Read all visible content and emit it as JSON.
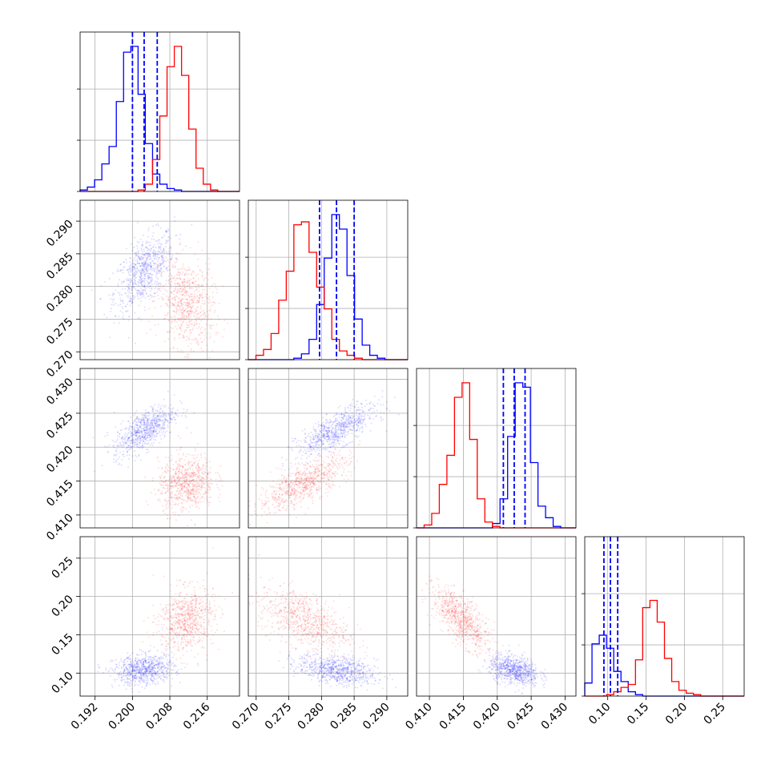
{
  "colors": {
    "blue": "#0000ff",
    "red": "#ff0000",
    "grid": "#b0b0b0"
  },
  "chart_data": {
    "type": "corner",
    "grid": true,
    "params": [
      {
        "ticks": [
          0.192,
          0.2,
          0.208,
          0.216
        ],
        "tick_labels": [
          "0.192",
          "0.200",
          "0.208",
          "0.216"
        ],
        "lim": [
          0.1888,
          0.2229
        ]
      },
      {
        "ticks": [
          0.27,
          0.275,
          0.28,
          0.285,
          0.29
        ],
        "tick_labels": [
          "0.270",
          "0.275",
          "0.280",
          "0.285",
          "0.290"
        ],
        "lim": [
          0.2688,
          0.2932
        ]
      },
      {
        "ticks": [
          0.41,
          0.415,
          0.42,
          0.425,
          0.43
        ],
        "tick_labels": [
          "0.410",
          "0.415",
          "0.420",
          "0.425",
          "0.430"
        ],
        "lim": [
          0.4081,
          0.4316
        ]
      },
      {
        "ticks": [
          0.1,
          0.15,
          0.2,
          0.25
        ],
        "tick_labels": [
          "0.10",
          "0.15",
          "0.20",
          "0.25"
        ],
        "lim": [
          0.07,
          0.278
        ]
      }
    ],
    "series": [
      {
        "color": "blue",
        "mean": [
          0.2025,
          0.2823,
          0.4225,
          0.104
        ],
        "std": [
          0.0028,
          0.0026,
          0.0016,
          0.0085
        ],
        "quantiles": [
          [
            0.2,
            0.2025,
            0.2053
          ],
          [
            0.2797,
            0.2823,
            0.285
          ],
          [
            0.4209,
            0.4225,
            0.4241
          ],
          [
            0.095,
            0.1035,
            0.113
          ]
        ],
        "corr": [
          [
            1,
            0.55,
            0.65,
            0.15
          ],
          [
            0.55,
            1,
            0.75,
            -0.35
          ],
          [
            0.65,
            0.75,
            1,
            -0.3
          ],
          [
            0.15,
            -0.35,
            -0.3,
            1
          ]
        ]
      },
      {
        "color": "red",
        "mean": [
          0.2115,
          0.2773,
          0.4147,
          0.17
        ],
        "std": [
          0.0026,
          0.003,
          0.0018,
          0.018
        ],
        "quantiles": null,
        "corr": [
          [
            1,
            -0.15,
            0.15,
            0.15
          ],
          [
            -0.15,
            1,
            0.75,
            -0.5
          ],
          [
            0.15,
            0.75,
            1,
            -0.7
          ],
          [
            0.15,
            -0.5,
            -0.7,
            1
          ]
        ]
      }
    ],
    "histograms": [
      {
        "bins": [
          0.1888,
          0.2229,
          22
        ],
        "blue": [
          1,
          3,
          8,
          19,
          31,
          62,
          96,
          100,
          67,
          33,
          12,
          5,
          2,
          1,
          0,
          0,
          0,
          0,
          0,
          0,
          0,
          0
        ],
        "red": [
          0,
          0,
          0,
          0,
          0,
          0,
          0,
          0,
          1,
          5,
          22,
          52,
          86,
          100,
          80,
          43,
          16,
          5,
          1,
          0,
          0,
          0
        ]
      },
      {
        "bins": [
          0.2688,
          0.2932,
          21
        ],
        "blue": [
          0,
          0,
          0,
          0,
          0,
          0,
          1,
          4,
          14,
          38,
          70,
          100,
          90,
          58,
          28,
          10,
          3,
          1,
          0,
          0,
          0
        ],
        "red": [
          0,
          3,
          7,
          18,
          41,
          61,
          93,
          95,
          74,
          50,
          35,
          14,
          6,
          3,
          1,
          0,
          0,
          0,
          0,
          0,
          0
        ]
      },
      {
        "bins": [
          0.4081,
          0.4316,
          21
        ],
        "blue": [
          0,
          0,
          0,
          0,
          0,
          0,
          0,
          0,
          0,
          0,
          3,
          20,
          63,
          100,
          97,
          45,
          15,
          7,
          1,
          0,
          0
        ],
        "red": [
          0,
          2,
          10,
          30,
          50,
          90,
          100,
          61,
          20,
          4,
          1,
          0,
          0,
          0,
          0,
          0,
          0,
          0,
          0,
          0,
          0
        ]
      },
      {
        "bins": [
          0.07,
          0.278,
          22
        ],
        "blue": [
          9,
          36,
          42,
          33,
          17,
          10,
          3,
          1,
          0,
          0,
          0,
          0,
          0,
          0,
          0,
          0,
          0,
          0,
          0,
          0,
          0,
          0
        ],
        "red": [
          0,
          0,
          0,
          1,
          3,
          6,
          8,
          25,
          61,
          66,
          51,
          26,
          10,
          4,
          2,
          1,
          0,
          0,
          0,
          0,
          0,
          0
        ]
      }
    ]
  }
}
